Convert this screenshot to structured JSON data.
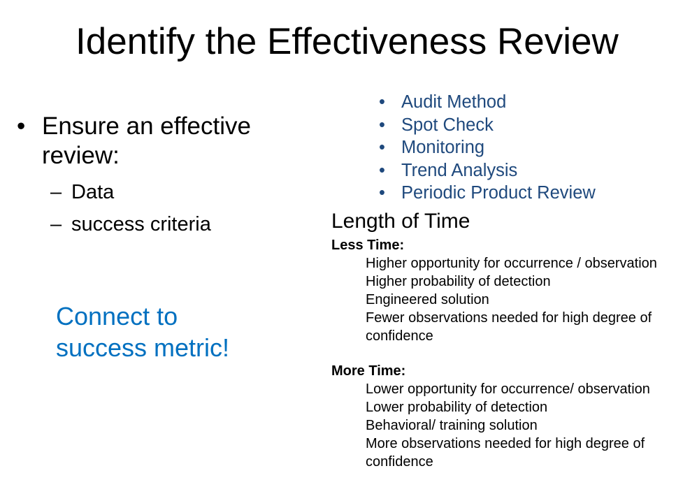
{
  "title": "Identify the Effectiveness Review",
  "left": {
    "bullet": "Ensure an effective review:",
    "subs": [
      "Data",
      "success criteria"
    ],
    "callout": "Connect to success metric!"
  },
  "methods": [
    "Audit Method",
    "Spot Check",
    "Monitoring",
    "Trend Analysis",
    "Periodic Product Review"
  ],
  "length": {
    "heading": "Length of Time",
    "less": {
      "label": "Less Time",
      "items": [
        "Higher opportunity for occurrence / observation",
        "Higher probability of detection",
        "Engineered solution",
        "Fewer observations needed for high degree of confidence"
      ]
    },
    "more": {
      "label": "More Time",
      "items": [
        "Lower opportunity for occurrence/ observation",
        "Lower probability of detection",
        "Behavioral/ training solution",
        "More observations needed for high degree of confidence"
      ]
    }
  },
  "colors": {
    "methods": "#1F497D",
    "callout": "#0070C0"
  }
}
